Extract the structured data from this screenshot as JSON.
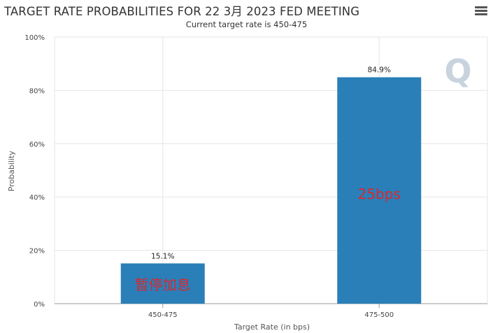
{
  "header": {
    "title": "TARGET RATE PROBABILITIES FOR 22 3月 2023 FED MEETING",
    "subtitle": "Current target rate is 450-475",
    "menu_icon": "hamburger-menu-icon"
  },
  "colors": {
    "bar": "#2a7fb8",
    "grid": "#e6e6e6",
    "axis": "#999999",
    "overlay_text": "#d9282f",
    "watermark": "#c8d3de"
  },
  "watermark_text": "Q",
  "chart_data": {
    "type": "bar",
    "categories": [
      "450-475",
      "475-500"
    ],
    "values": [
      15.1,
      84.9
    ],
    "data_labels": [
      "15.1%",
      "84.9%"
    ],
    "overlay_labels": [
      "暂停加息",
      "25bps"
    ],
    "xlabel": "Target Rate (in bps)",
    "ylabel": "Probability",
    "ylim": [
      0,
      100
    ],
    "yticks": [
      0,
      20,
      40,
      60,
      80,
      100
    ],
    "ytick_labels": [
      "0%",
      "20%",
      "40%",
      "60%",
      "80%",
      "100%"
    ],
    "grid": true,
    "legend": "none"
  }
}
